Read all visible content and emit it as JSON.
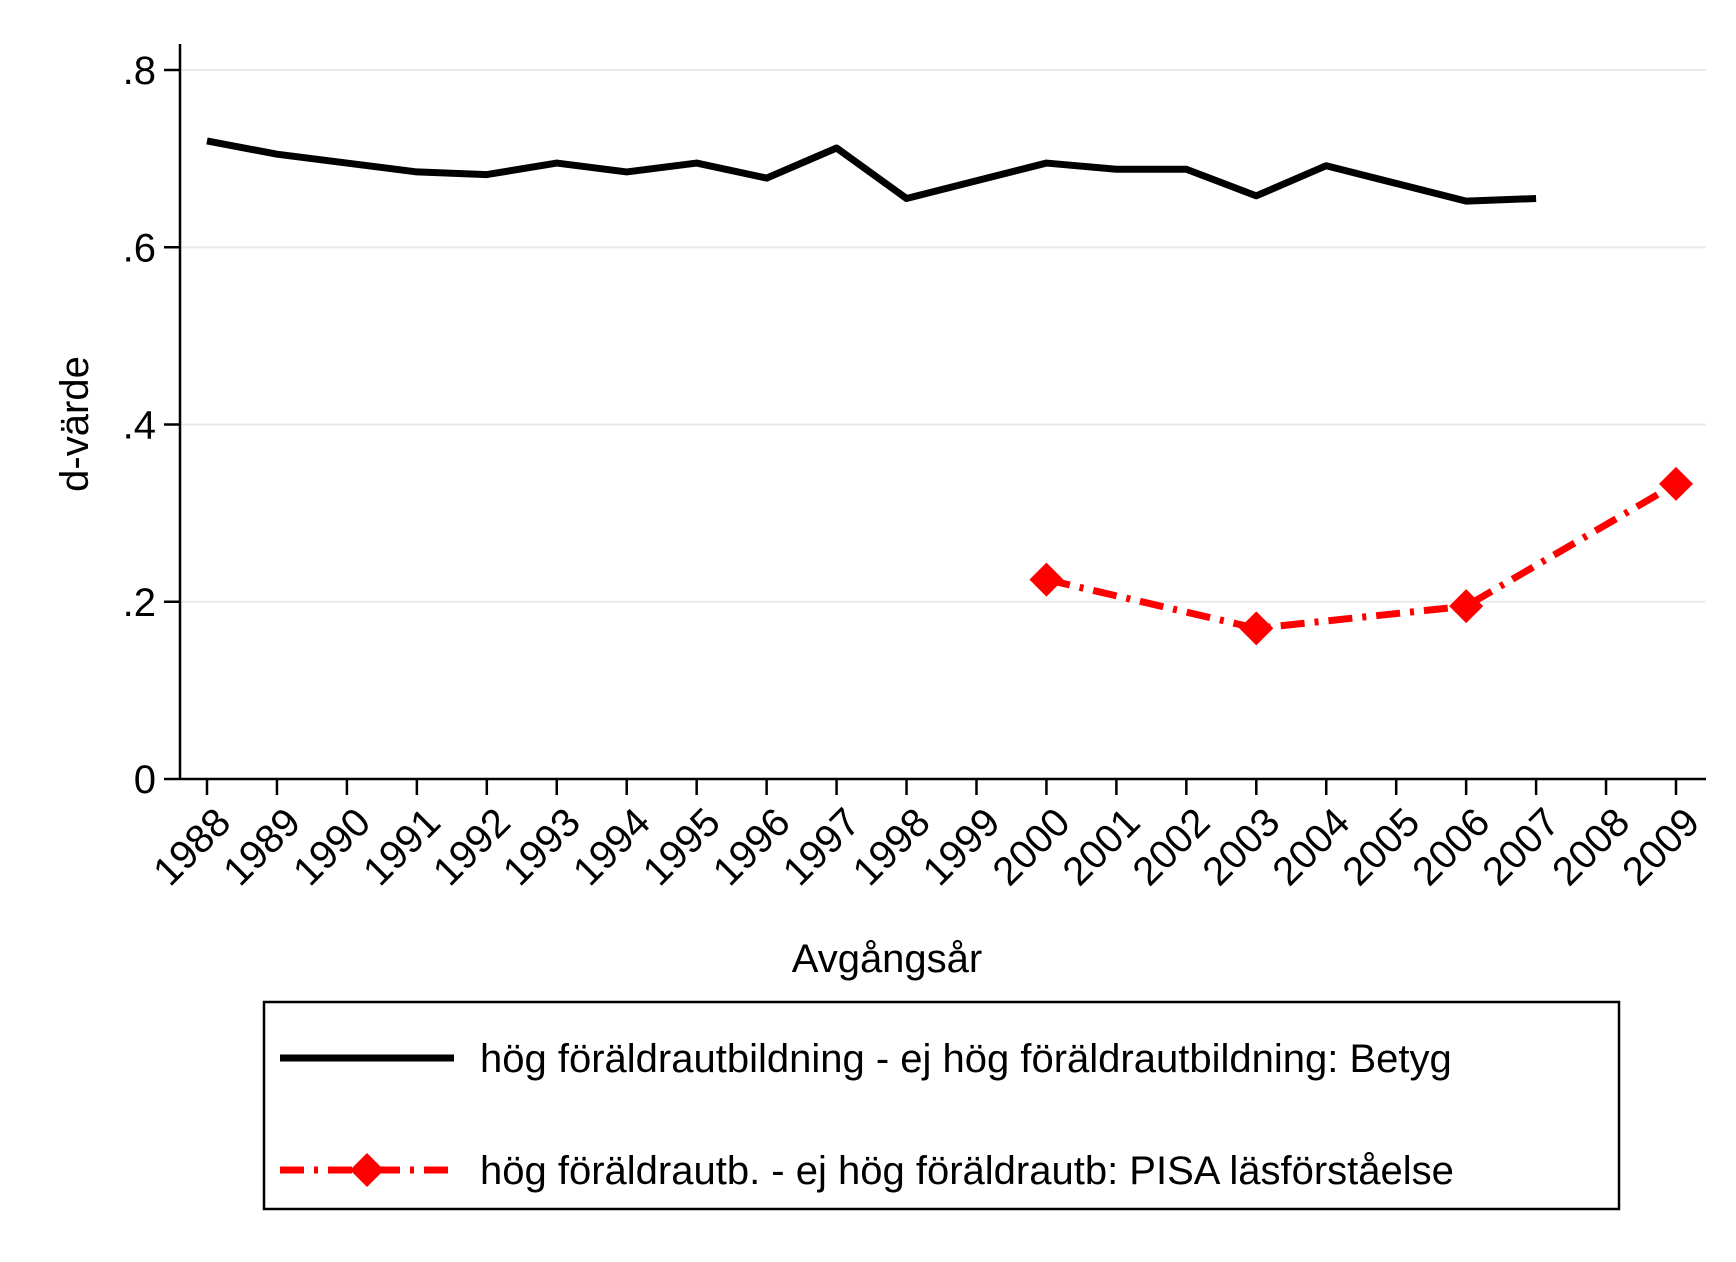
{
  "chart_data": {
    "type": "line",
    "xlabel": "Avgångsår",
    "ylabel": "d-värde",
    "ylim": [
      0,
      0.8
    ],
    "yticks": [
      {
        "value": 0,
        "label": "0"
      },
      {
        "value": 0.2,
        "label": ".2"
      },
      {
        "value": 0.4,
        "label": ".4"
      },
      {
        "value": 0.6,
        "label": ".6"
      },
      {
        "value": 0.8,
        "label": ".8"
      }
    ],
    "categories": [
      "1988",
      "1989",
      "1990",
      "1991",
      "1992",
      "1993",
      "1994",
      "1995",
      "1996",
      "1997",
      "1998",
      "1999",
      "2000",
      "2001",
      "2002",
      "2003",
      "2004",
      "2005",
      "2006",
      "2007",
      "2008",
      "2009"
    ],
    "grid": true,
    "legend_position": "bottom",
    "series": [
      {
        "name": "hög föräldrautbildning - ej hög föräldrautbildning: Betyg",
        "color": "#000000",
        "style": "solid",
        "marker": "none",
        "x": [
          "1988",
          "1989",
          "1990",
          "1991",
          "1992",
          "1993",
          "1994",
          "1995",
          "1996",
          "1997",
          "1998",
          "1999",
          "2000",
          "2001",
          "2002",
          "2003",
          "2004",
          "2005",
          "2006",
          "2007"
        ],
        "values": [
          0.72,
          0.705,
          0.695,
          0.685,
          0.682,
          0.695,
          0.685,
          0.695,
          0.678,
          0.712,
          0.655,
          0.675,
          0.695,
          0.688,
          0.688,
          0.658,
          0.692,
          0.672,
          0.652,
          0.655
        ]
      },
      {
        "name": "hög föräldrautb. - ej hög föräldrautb: PISA läsförståelse",
        "color": "#ff0000",
        "style": "dash-dot",
        "marker": "diamond",
        "x": [
          "2000",
          "2003",
          "2006",
          "2009"
        ],
        "values": [
          0.225,
          0.17,
          0.195,
          0.333
        ]
      }
    ]
  }
}
